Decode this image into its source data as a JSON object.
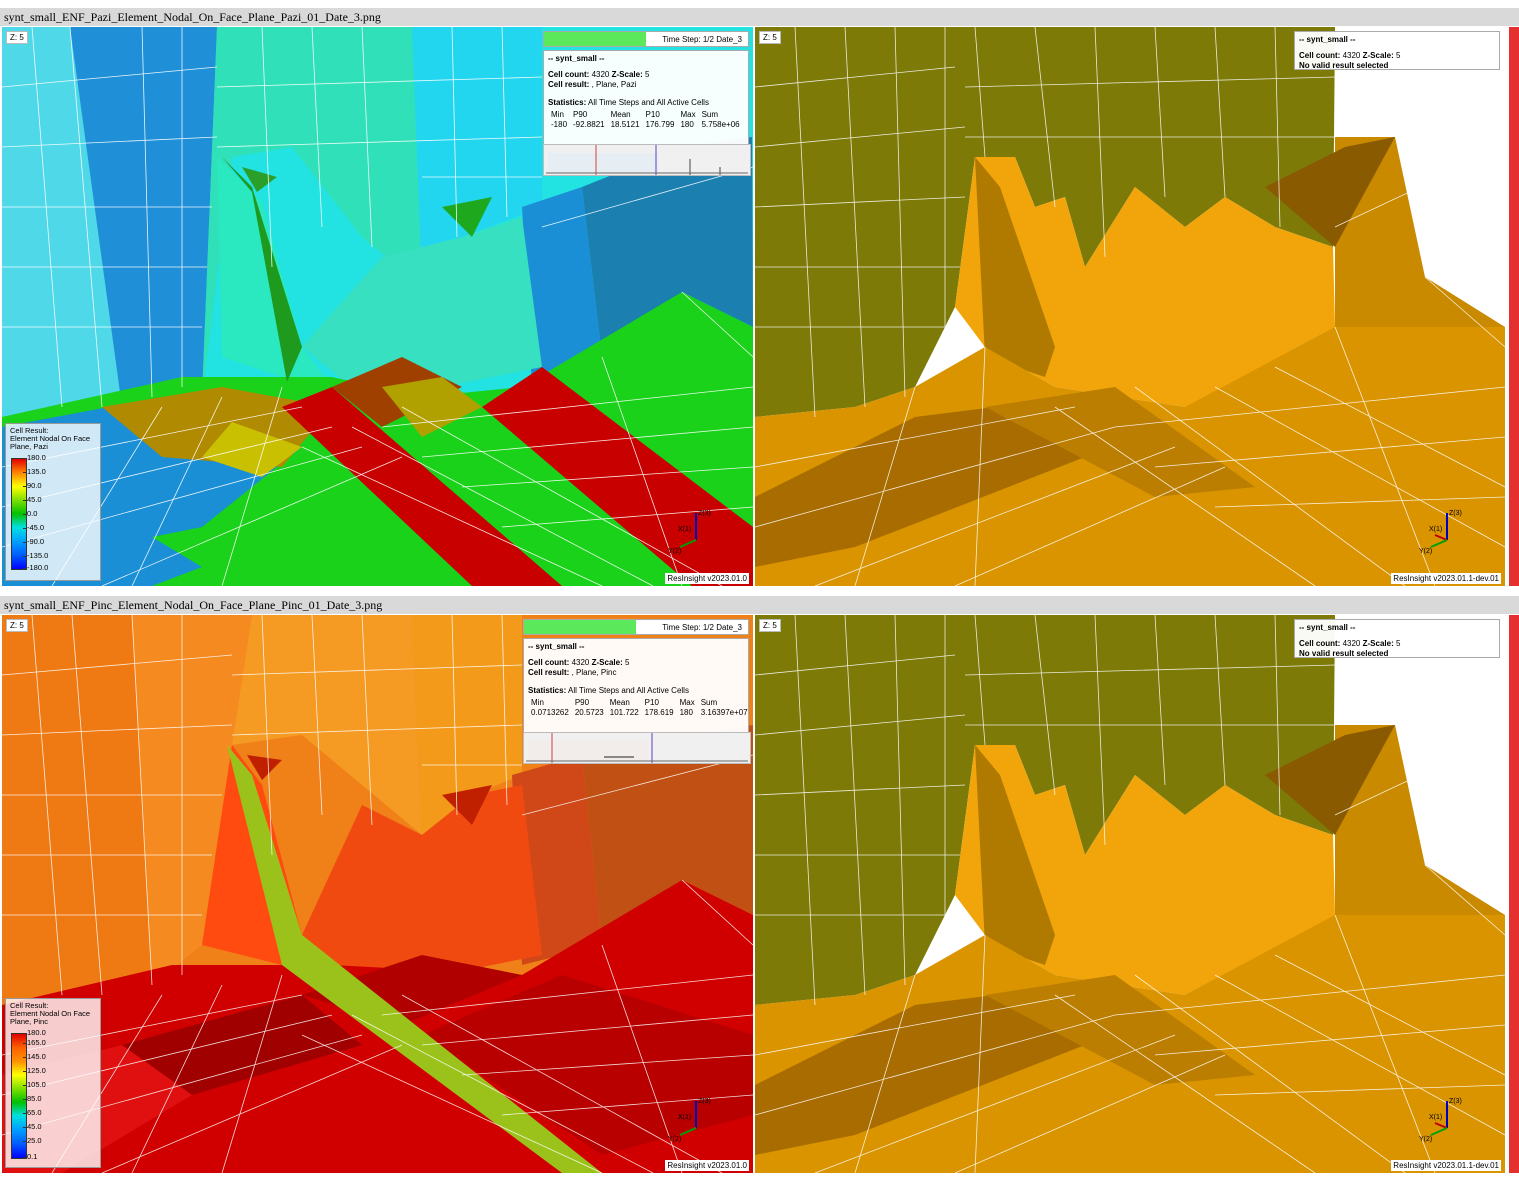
{
  "captions": [
    "synt_small_ENF_Pazi_Element_Nodal_On_Face_Plane_Pazi_01_Date_3.png",
    "synt_small_ENF_Pinc_Element_Nodal_On_Face_Plane_Pinc_01_Date_3.png"
  ],
  "top_left": {
    "z_scale_label": "Z: 5",
    "time_step": {
      "label": "Time Step:",
      "value": "1/2 Date_3",
      "progress": 0.5
    },
    "info": {
      "header": "-- synt_small --",
      "cell_count_label": "Cell count:",
      "cell_count": "4320",
      "zscale_label": "Z-Scale:",
      "zscale": "5",
      "cell_result_label": "Cell result:",
      "cell_result": ", Plane, Pazi",
      "stats_label": "Statistics:",
      "stats_scope": "All Time Steps and All Active Cells",
      "columns": [
        "Min",
        "P90",
        "Mean",
        "P10",
        "Max",
        "Sum"
      ],
      "values": [
        "-180",
        "-92.8821",
        "18.5121",
        "176.799",
        "180",
        "5.758e+06"
      ]
    },
    "legend": {
      "title": "Cell Result:\nElement Nodal On Face\nPlane, Pazi",
      "ticks": [
        "180.0",
        "135.0",
        "90.0",
        "45.0",
        "0.0",
        "-45.0",
        "-90.0",
        "-135.0",
        "-180.0"
      ]
    },
    "version": "ResInsight v2023.01.0"
  },
  "top_right": {
    "z_scale_label": "Z: 5",
    "info": {
      "header": "-- synt_small --",
      "cell_count_label": "Cell count:",
      "cell_count": "4320",
      "zscale_label": "Z-Scale:",
      "zscale": "5",
      "message": "No valid result selected"
    },
    "version": "ResInsight v2023.01.1-dev.01"
  },
  "bottom_left": {
    "z_scale_label": "Z: 5",
    "time_step": {
      "label": "Time Step:",
      "value": "1/2 Date_3",
      "progress": 0.5
    },
    "info": {
      "header": "-- synt_small --",
      "cell_count_label": "Cell count:",
      "cell_count": "4320",
      "zscale_label": "Z-Scale:",
      "zscale": "5",
      "cell_result_label": "Cell result:",
      "cell_result": ", Plane, Pinc",
      "stats_label": "Statistics:",
      "stats_scope": "All Time Steps and All Active Cells",
      "columns": [
        "Min",
        "P90",
        "Mean",
        "P10",
        "Max",
        "Sum"
      ],
      "values": [
        "0.0713262",
        "20.5723",
        "101.722",
        "178.619",
        "180",
        "3.16397e+07"
      ]
    },
    "legend": {
      "title": "Cell Result:\nElement Nodal On Face\nPlane, Pinc",
      "ticks": [
        "180.0",
        "165.0",
        "145.0",
        "125.0",
        "105.0",
        "85.0",
        "65.0",
        "45.0",
        "25.0",
        "0.1"
      ]
    },
    "version": "ResInsight v2023.01.0"
  },
  "bottom_right": {
    "z_scale_label": "Z: 5",
    "info": {
      "header": "-- synt_small --",
      "cell_count_label": "Cell count:",
      "cell_count": "4320",
      "zscale_label": "Z-Scale:",
      "zscale": "5",
      "message": "No valid result selected"
    },
    "version": "ResInsight v2023.01.1-dev.01"
  },
  "axes_labels": {
    "x": "X(1)",
    "y": "Y(2)",
    "z": "Z(3)"
  },
  "colors": {
    "pazi_cyan": "#19e6e6",
    "pazi_blue": "#1a8fd6",
    "pazi_green": "#19d219",
    "pazi_red": "#c00000",
    "pinc_orange": "#f07a10",
    "pinc_red": "#cc0000",
    "olive": "#7a7a00",
    "amber": "#f0a000"
  }
}
